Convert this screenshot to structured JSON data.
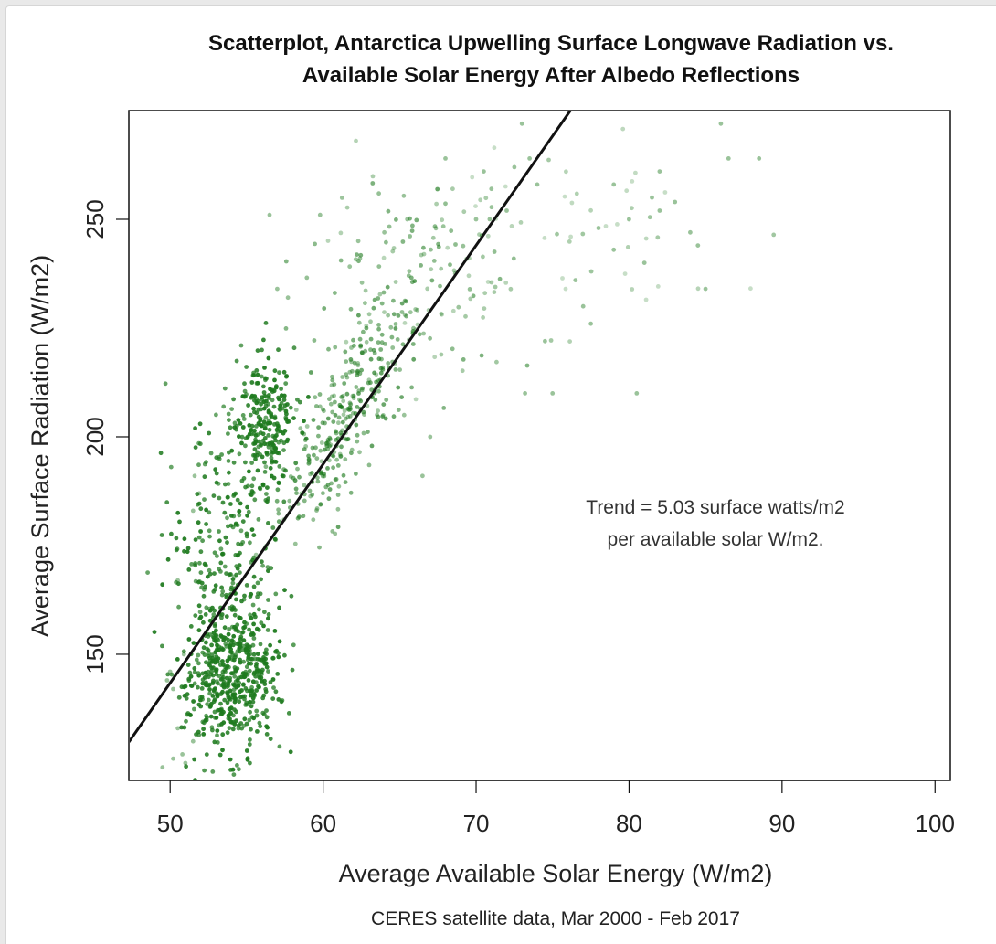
{
  "chart_data": {
    "type": "scatter",
    "title": "Scatterplot, Antarctica Upwelling Surface Longwave Radiation vs.",
    "title_line2": "Available Solar Energy After Albedo Reflections",
    "xlabel": "Average Available Solar Energy (W/m2)",
    "ylabel": "Average Surface Radiation (W/m2)",
    "caption": "CERES satellite data, Mar 2000 - Feb 2017",
    "annotation_line1": "Trend = 5.03 surface watts/m2",
    "annotation_line2": "per available solar W/m2.",
    "xlim": [
      47.3,
      101
    ],
    "ylim": [
      121,
      275
    ],
    "x_ticks": [
      50,
      60,
      70,
      80,
      90,
      100
    ],
    "x_tick_labels": [
      "50",
      "60",
      "70",
      "80",
      "90",
      "100"
    ],
    "y_ticks": [
      150,
      200,
      250
    ],
    "y_tick_labels": [
      "150",
      "200",
      "250"
    ],
    "grid": false,
    "point_color": "#1e7a1e",
    "trend_line": {
      "slope": 5.03,
      "intercept": -108.1,
      "color": "#111111"
    },
    "clusters": [
      {
        "name": "lower-left dense",
        "n": 520,
        "x_mean": 54.0,
        "x_sd": 1.6,
        "y_mean": 145,
        "y_sd": 9,
        "alpha": 0.85
      },
      {
        "name": "upper-left band",
        "n": 230,
        "x_mean": 56.3,
        "x_sd": 1.0,
        "y_mean": 203,
        "y_sd": 8,
        "alpha": 0.85
      },
      {
        "name": "left vertical spread",
        "n": 260,
        "x_mean": 53.5,
        "x_sd": 1.8,
        "y_mean": 175,
        "y_sd": 18,
        "alpha": 0.8
      },
      {
        "name": "middle diagonal band",
        "n": 320,
        "x_mean": 61.5,
        "x_sd": 2.2,
        "y_mean": 197,
        "y_sd": 20,
        "alpha": 0.55
      },
      {
        "name": "upper middle",
        "n": 140,
        "x_mean": 66.5,
        "x_sd": 3.5,
        "y_mean": 238,
        "y_sd": 12,
        "alpha": 0.45
      },
      {
        "name": "upper right sparse",
        "n": 40,
        "x_mean": 79,
        "x_sd": 5,
        "y_mean": 252,
        "y_sd": 11,
        "alpha": 0.3
      }
    ],
    "points": [
      [
        49.5,
        124
      ],
      [
        50.2,
        126
      ],
      [
        50.8,
        127
      ],
      [
        51.0,
        125
      ],
      [
        51.5,
        130
      ],
      [
        50.5,
        133
      ],
      [
        49.8,
        144
      ],
      [
        50.2,
        142
      ],
      [
        50.0,
        146
      ],
      [
        50.6,
        140
      ],
      [
        50.9,
        150
      ],
      [
        50.5,
        167
      ],
      [
        51.5,
        183
      ],
      [
        51.6,
        191
      ],
      [
        51.9,
        187
      ],
      [
        56.5,
        251
      ],
      [
        59.8,
        251
      ],
      [
        57.7,
        232
      ],
      [
        57.0,
        234
      ],
      [
        62.3,
        245
      ],
      [
        64.0,
        247
      ],
      [
        65.5,
        250
      ],
      [
        66.5,
        191
      ],
      [
        67.0,
        200
      ],
      [
        65.3,
        205
      ],
      [
        70.0,
        250
      ],
      [
        71.0,
        257
      ],
      [
        72.0,
        252
      ],
      [
        74.5,
        222
      ],
      [
        73.2,
        210
      ],
      [
        75.0,
        210
      ],
      [
        76.5,
        236
      ],
      [
        77.0,
        230
      ],
      [
        77.5,
        226
      ],
      [
        78.0,
        248
      ],
      [
        79.0,
        243
      ],
      [
        80.0,
        250
      ],
      [
        80.5,
        210
      ],
      [
        81.0,
        240
      ],
      [
        82.0,
        252
      ],
      [
        83.0,
        254
      ],
      [
        84.0,
        247
      ],
      [
        84.5,
        244
      ],
      [
        81.5,
        255
      ],
      [
        85.0,
        234
      ],
      [
        86.5,
        264
      ],
      [
        88.5,
        264
      ],
      [
        73.0,
        272
      ],
      [
        86.0,
        272
      ],
      [
        82.0,
        261
      ],
      [
        79.0,
        258
      ],
      [
        72.5,
        262
      ],
      [
        73.5,
        264
      ],
      [
        74.0,
        258
      ],
      [
        70.5,
        261
      ],
      [
        68.0,
        264
      ]
    ]
  }
}
